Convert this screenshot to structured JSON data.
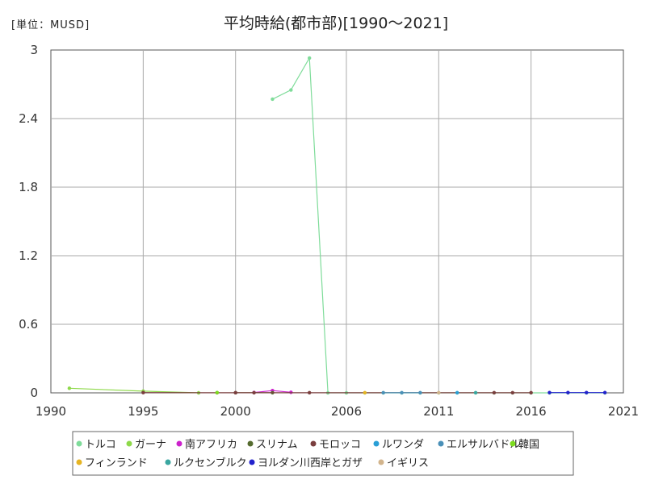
{
  "chart_data": {
    "type": "line",
    "unit_label": "[単位：MUSD]",
    "title": "平均時給(都市部)[1990～2021]",
    "xlabel": "",
    "ylabel": "",
    "xlim": [
      1990,
      2021
    ],
    "ylim": [
      0,
      3
    ],
    "x_ticks": [
      "1990",
      "1995",
      "2000",
      "2006",
      "2011",
      "2016",
      "2021"
    ],
    "y_ticks": [
      "0",
      "0.6",
      "1.2",
      "1.8",
      "2.4",
      "3"
    ],
    "grid": true,
    "legend_position": "bottom",
    "series": [
      {
        "name": "トルコ",
        "color": "#7fdc9a",
        "points": [
          [
            2002,
            2.57
          ],
          [
            2003,
            2.65
          ],
          [
            2004,
            2.93
          ],
          [
            2005,
            0.0
          ],
          [
            2006,
            0.0
          ],
          [
            2007,
            0.0
          ],
          [
            2008,
            0.0
          ],
          [
            2009,
            0.0
          ],
          [
            2010,
            0.0
          ],
          [
            2011,
            0.0
          ],
          [
            2012,
            0.0
          ],
          [
            2013,
            0.0
          ],
          [
            2014,
            0.0
          ],
          [
            2015,
            0.0
          ],
          [
            2016,
            0.0
          ],
          [
            2017,
            0.0
          ],
          [
            2018,
            0.0
          ],
          [
            2019,
            0.0
          ],
          [
            2020,
            0.0
          ]
        ]
      },
      {
        "name": "ガーナ",
        "color": "#8ed94a",
        "points": [
          [
            1991,
            0.04
          ],
          [
            1995,
            0.015
          ],
          [
            1998,
            0.0
          ]
        ]
      },
      {
        "name": "南アフリカ",
        "color": "#cc22cc",
        "points": [
          [
            2001,
            0.003
          ],
          [
            2002,
            0.02
          ],
          [
            2003,
            0.005
          ]
        ]
      },
      {
        "name": "スリナム",
        "color": "#556b2f",
        "points": [
          [
            2000,
            0.001
          ],
          [
            2002,
            0.001
          ]
        ]
      },
      {
        "name": "モロッコ",
        "color": "#7a3e3e",
        "points": [
          [
            1995,
            0.002
          ],
          [
            1999,
            0.001
          ],
          [
            2000,
            0.001
          ],
          [
            2001,
            0.001
          ],
          [
            2004,
            0.001
          ],
          [
            2014,
            0.001
          ],
          [
            2015,
            0.001
          ],
          [
            2016,
            0.001
          ]
        ]
      },
      {
        "name": "ルワンダ",
        "color": "#2a9fd6",
        "points": [
          [
            2012,
            0.001
          ]
        ]
      },
      {
        "name": "エルサルバドル",
        "color": "#4a90b8",
        "points": [
          [
            2008,
            0.001
          ],
          [
            2009,
            0.001
          ],
          [
            2010,
            0.001
          ]
        ]
      },
      {
        "name": "韓国",
        "color": "#7ddc1f",
        "points": [
          [
            1999,
            0.002
          ]
        ]
      },
      {
        "name": "フィンランド",
        "color": "#e6b422",
        "points": [
          [
            2007,
            0.001
          ]
        ]
      },
      {
        "name": "ルクセンブルク",
        "color": "#3aa6a0",
        "points": [
          [
            2013,
            0.001
          ]
        ]
      },
      {
        "name": "ヨルダン川西岸とガザ",
        "color": "#2222cc",
        "points": [
          [
            2017,
            0.002
          ],
          [
            2018,
            0.002
          ],
          [
            2019,
            0.002
          ],
          [
            2020,
            0.002
          ]
        ]
      },
      {
        "name": "イギリス",
        "color": "#d2b48c",
        "points": [
          [
            2011,
            0.001
          ]
        ]
      }
    ]
  }
}
